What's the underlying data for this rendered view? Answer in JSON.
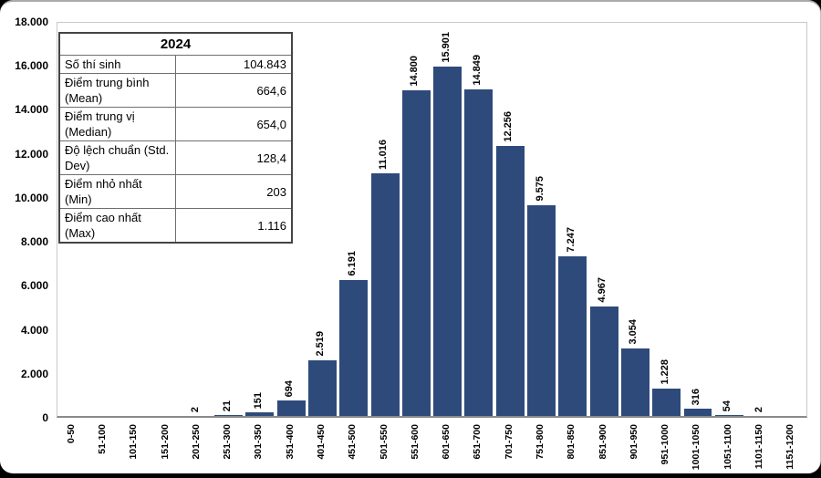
{
  "stats_table": {
    "header": "2024",
    "rows": [
      {
        "label": "Số thí sinh",
        "value": "104.843"
      },
      {
        "label": "Điểm trung bình (Mean)",
        "value": "664,6"
      },
      {
        "label": "Điểm trung vị (Median)",
        "value": "654,0"
      },
      {
        "label": "Độ lệch chuẩn (Std. Dev)",
        "value": "128,4"
      },
      {
        "label": "Điểm nhỏ nhất (Min)",
        "value": "203"
      },
      {
        "label": "Điểm cao nhất (Max)",
        "value": "1.116"
      }
    ]
  },
  "chart_data": {
    "type": "bar",
    "title": "",
    "xlabel": "",
    "ylabel": "",
    "categories": [
      "0-50",
      "51-100",
      "101-150",
      "151-200",
      "201-250",
      "251-300",
      "301-350",
      "351-400",
      "401-450",
      "451-500",
      "501-550",
      "551-600",
      "601-650",
      "651-700",
      "701-750",
      "751-800",
      "801-850",
      "851-900",
      "901-950",
      "951-1000",
      "1001-1050",
      "1051-1100",
      "1101-1150",
      "1151-1200"
    ],
    "values": [
      0,
      0,
      0,
      0,
      2,
      21,
      151,
      694,
      2519,
      6191,
      11016,
      14800,
      15901,
      14849,
      12256,
      9575,
      7247,
      4967,
      3054,
      1228,
      316,
      54,
      2,
      0
    ],
    "bar_labels": [
      "",
      "",
      "",
      "",
      "2",
      "21",
      "151",
      "694",
      "2.519",
      "6.191",
      "11.016",
      "14.800",
      "15.901",
      "14.849",
      "12.256",
      "9.575",
      "7.247",
      "4.967",
      "3.054",
      "1.228",
      "316",
      "54",
      "2",
      ""
    ],
    "ylim": [
      0,
      18000
    ],
    "ytick_step": 2000,
    "ytick_labels": [
      "0",
      "2.000",
      "4.000",
      "6.000",
      "8.000",
      "10.000",
      "12.000",
      "14.000",
      "16.000",
      "18.000"
    ],
    "grid": false,
    "legend": null,
    "bar_color": "#2e4a7a",
    "label_color": "#000000"
  }
}
